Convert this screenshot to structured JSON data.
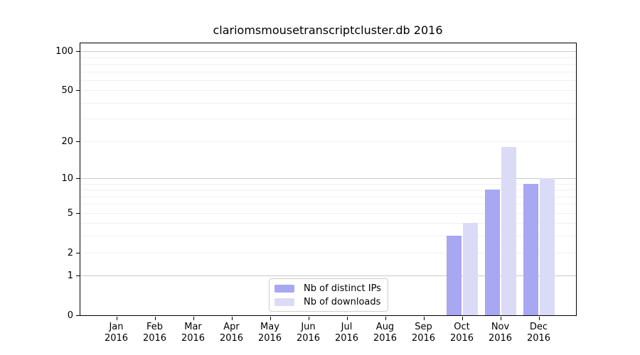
{
  "chart_data": {
    "type": "bar",
    "title": "clariomsmousetranscriptcluster.db 2016",
    "categories": [
      "Jan 2016",
      "Feb 2016",
      "Mar 2016",
      "Apr 2016",
      "May 2016",
      "Jun 2016",
      "Jul 2016",
      "Aug 2016",
      "Sep 2016",
      "Oct 2016",
      "Nov 2016",
      "Dec 2016"
    ],
    "x_tick_months": [
      "Jan",
      "Feb",
      "Mar",
      "Apr",
      "May",
      "Jun",
      "Jul",
      "Aug",
      "Sep",
      "Oct",
      "Nov",
      "Dec"
    ],
    "x_tick_year": "2016",
    "series": [
      {
        "name": "Nb of distinct IPs",
        "color": "#a7a7f2",
        "values": [
          0,
          0,
          0,
          0,
          0,
          0,
          0,
          0,
          0,
          3,
          8,
          9
        ]
      },
      {
        "name": "Nb of downloads",
        "color": "#dbdbf8",
        "values": [
          0,
          0,
          0,
          0,
          0,
          0,
          0,
          0,
          0,
          4,
          18,
          10
        ]
      }
    ],
    "y_axis": {
      "scale": "log1p",
      "ticks": [
        0,
        1,
        2,
        5,
        10,
        20,
        50,
        100
      ],
      "ylim": [
        0,
        115
      ],
      "major_gridlines": [
        1,
        10,
        100
      ],
      "minor_gridlines": [
        2,
        3,
        4,
        5,
        6,
        7,
        8,
        9,
        20,
        30,
        40,
        50,
        60,
        70,
        80,
        90
      ]
    },
    "legend": {
      "position": "lower center",
      "items": [
        "Nb of distinct IPs",
        "Nb of downloads"
      ]
    },
    "colors": {
      "grid_major": "#c9c9c9",
      "grid_minor": "#f0f0f0",
      "spine": "#000000",
      "background": "#ffffff"
    }
  }
}
